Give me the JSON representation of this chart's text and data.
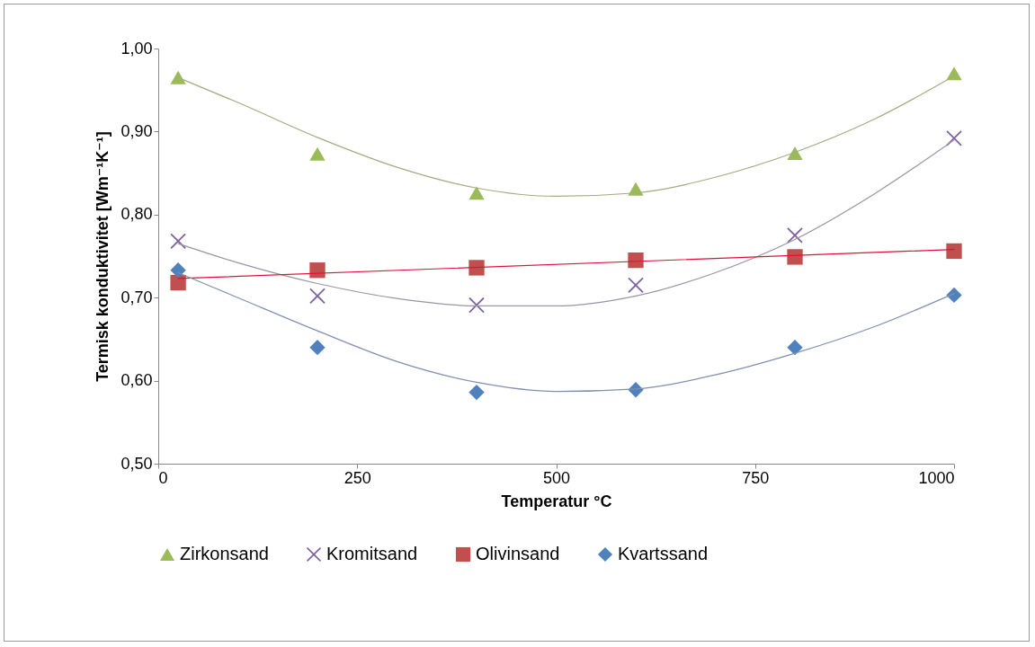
{
  "chart_data": {
    "type": "scatter",
    "xlabel": "Temperatur °C",
    "ylabel": "Termisk konduktivitet [Wm⁻¹K⁻¹]",
    "xlim": [
      0,
      1000
    ],
    "xticks": [
      0,
      250,
      500,
      750,
      1000
    ],
    "ylim": [
      0.5,
      1.0
    ],
    "yticks": [
      {
        "value": 0.5,
        "label": "0,50"
      },
      {
        "value": 0.6,
        "label": "0,60"
      },
      {
        "value": 0.7,
        "label": "0,70"
      },
      {
        "value": 0.8,
        "label": "0,80"
      },
      {
        "value": 0.9,
        "label": "0,90"
      },
      {
        "value": 1.0,
        "label": "1,00"
      }
    ],
    "grid": false,
    "legend": "bottom",
    "series": [
      {
        "type": "line",
        "color": "#a0ad80",
        "x": [
          25,
          100,
          200,
          300,
          400,
          500,
          600,
          700,
          800,
          900,
          1000
        ],
        "values": [
          0.965,
          0.935,
          0.893,
          0.857,
          0.832,
          0.822,
          0.826,
          0.845,
          0.875,
          0.915,
          0.967
        ]
      },
      {
        "type": "line",
        "color": "#9a94a8",
        "x": [
          25,
          100,
          200,
          300,
          400,
          500,
          600,
          700,
          800,
          900,
          1000
        ],
        "values": [
          0.765,
          0.742,
          0.717,
          0.699,
          0.69,
          0.69,
          0.702,
          0.73,
          0.77,
          0.825,
          0.89
        ]
      },
      {
        "type": "line",
        "color": "#e0103a",
        "x": [
          25,
          1000
        ],
        "values": [
          0.723,
          0.758
        ]
      },
      {
        "type": "line",
        "color": "#8090b0",
        "x": [
          25,
          100,
          200,
          300,
          400,
          500,
          600,
          700,
          800,
          900,
          1000
        ],
        "values": [
          0.73,
          0.7,
          0.66,
          0.623,
          0.598,
          0.587,
          0.59,
          0.607,
          0.633,
          0.665,
          0.705
        ]
      },
      {
        "name": "Zirkonsand",
        "color": "#9bbb59",
        "marker": "triangle",
        "x": [
          25,
          200,
          400,
          600,
          800,
          1000
        ],
        "values": [
          0.965,
          0.873,
          0.826,
          0.831,
          0.874,
          0.97
        ]
      },
      {
        "name": "Kromitsand",
        "color": "#8064a2",
        "marker": "cross",
        "x": [
          25,
          200,
          400,
          600,
          800,
          1000
        ],
        "values": [
          0.768,
          0.702,
          0.691,
          0.715,
          0.775,
          0.892
        ]
      },
      {
        "name": "Olivinsand",
        "color": "#c0504d",
        "marker": "square",
        "x": [
          25,
          200,
          400,
          600,
          800,
          1000
        ],
        "values": [
          0.718,
          0.733,
          0.736,
          0.745,
          0.749,
          0.756
        ]
      },
      {
        "name": "Kvartssand",
        "color": "#4f81bd",
        "marker": "diamond",
        "x": [
          25,
          200,
          400,
          600,
          800,
          1000
        ],
        "values": [
          0.733,
          0.64,
          0.586,
          0.589,
          0.64,
          0.703
        ]
      }
    ]
  }
}
